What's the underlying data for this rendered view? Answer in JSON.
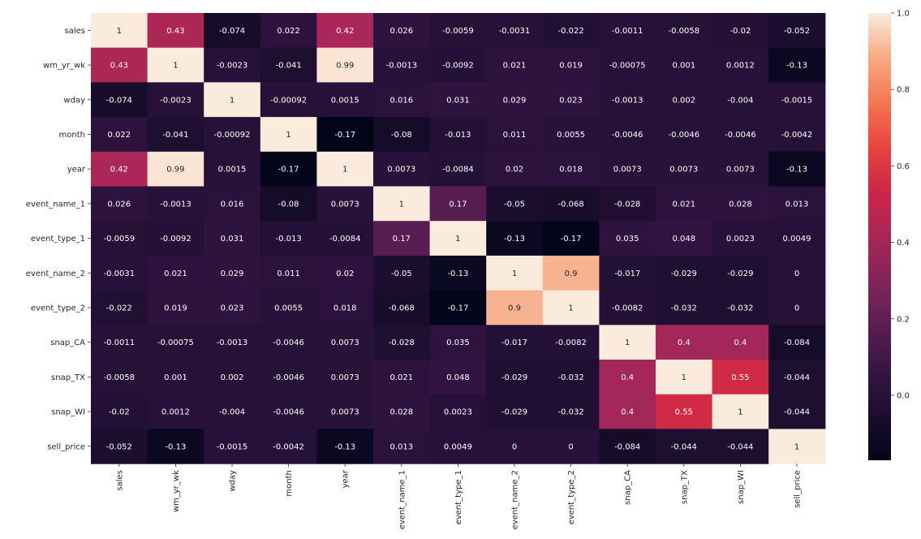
{
  "chart_data": {
    "type": "heatmap",
    "title": "",
    "xlabel": "",
    "ylabel": "",
    "x_labels": [
      "sales",
      "wm_yr_wk",
      "wday",
      "month",
      "year",
      "event_name_1",
      "event_type_1",
      "event_name_2",
      "event_type_2",
      "snap_CA",
      "snap_TX",
      "snap_WI",
      "sell_price"
    ],
    "y_labels": [
      "sales",
      "wm_yr_wk",
      "wday",
      "month",
      "year",
      "event_name_1",
      "event_type_1",
      "event_name_2",
      "event_type_2",
      "snap_CA",
      "snap_TX",
      "snap_WI",
      "sell_price"
    ],
    "values": [
      [
        1,
        0.43,
        -0.074,
        0.022,
        0.42,
        0.026,
        -0.0059,
        -0.0031,
        -0.022,
        -0.0011,
        -0.0058,
        -0.02,
        -0.052
      ],
      [
        0.43,
        1,
        -0.0023,
        -0.041,
        0.99,
        -0.0013,
        -0.0092,
        0.021,
        0.019,
        -0.00075,
        0.001,
        0.0012,
        -0.13
      ],
      [
        -0.074,
        -0.0023,
        1,
        -0.00092,
        0.0015,
        0.016,
        0.031,
        0.029,
        0.023,
        -0.0013,
        0.002,
        -0.004,
        -0.0015
      ],
      [
        0.022,
        -0.041,
        -0.00092,
        1,
        -0.17,
        -0.08,
        -0.013,
        0.011,
        0.0055,
        -0.0046,
        -0.0046,
        -0.0046,
        -0.0042
      ],
      [
        0.42,
        0.99,
        0.0015,
        -0.17,
        1,
        0.0073,
        -0.0084,
        0.02,
        0.018,
        0.0073,
        0.0073,
        0.0073,
        -0.13
      ],
      [
        0.026,
        -0.0013,
        0.016,
        -0.08,
        0.0073,
        1,
        0.17,
        -0.05,
        -0.068,
        -0.028,
        0.021,
        0.028,
        0.013
      ],
      [
        -0.0059,
        -0.0092,
        0.031,
        -0.013,
        -0.0084,
        0.17,
        1,
        -0.13,
        -0.17,
        0.035,
        0.048,
        0.0023,
        0.0049
      ],
      [
        -0.0031,
        0.021,
        0.029,
        0.011,
        0.02,
        -0.05,
        -0.13,
        1,
        0.9,
        -0.017,
        -0.029,
        -0.029,
        0
      ],
      [
        -0.022,
        0.019,
        0.023,
        0.0055,
        0.018,
        -0.068,
        -0.17,
        0.9,
        1,
        -0.0082,
        -0.032,
        -0.032,
        0
      ],
      [
        -0.0011,
        -0.00075,
        -0.0013,
        -0.0046,
        0.0073,
        -0.028,
        0.035,
        -0.017,
        -0.0082,
        1,
        0.4,
        0.4,
        -0.084
      ],
      [
        -0.0058,
        0.001,
        0.002,
        -0.0046,
        0.0073,
        0.021,
        0.048,
        -0.029,
        -0.032,
        0.4,
        1,
        0.55,
        -0.044
      ],
      [
        -0.02,
        0.0012,
        -0.004,
        -0.0046,
        0.0073,
        0.028,
        0.0023,
        -0.029,
        -0.032,
        0.4,
        0.55,
        1,
        -0.044
      ],
      [
        -0.052,
        -0.13,
        -0.0015,
        -0.0042,
        -0.13,
        0.013,
        0.0049,
        0,
        0,
        -0.084,
        -0.044,
        -0.044,
        1
      ]
    ],
    "value_range": [
      -0.17,
      1.0
    ],
    "colormap": "rocket",
    "annotations": true,
    "colorbar": {
      "position": "right",
      "ticks": [
        0.0,
        0.2,
        0.4,
        0.6,
        0.8,
        1.0
      ],
      "tick_labels": [
        "0.0",
        "0.2",
        "0.4",
        "0.6",
        "0.8",
        "1.0"
      ]
    }
  }
}
